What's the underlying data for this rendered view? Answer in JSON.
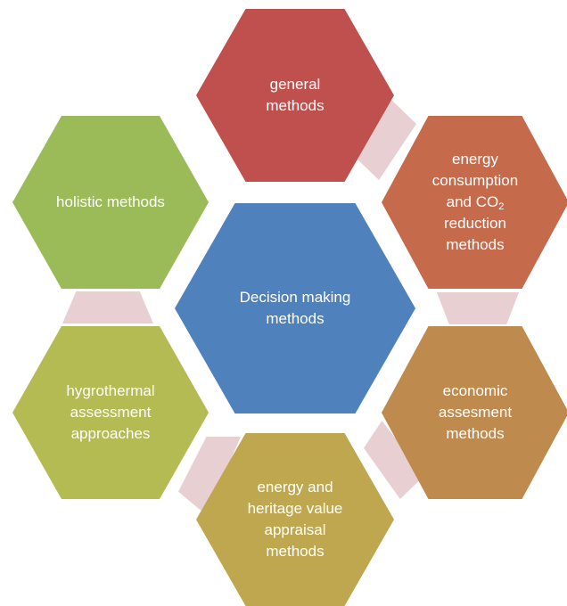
{
  "center": {
    "line1": "Decision making",
    "line2": "methods",
    "color": "#4f81bd"
  },
  "nodes": {
    "general": {
      "line1": "general",
      "line2": "methods",
      "color": "#c0504d"
    },
    "energy_co2": {
      "line1": "energy",
      "line2": "consumption",
      "line3a": "and CO",
      "line3_sub": "2",
      "line4": "reduction",
      "line5": "methods",
      "color": "#c56a4b"
    },
    "economic": {
      "line1": "economic",
      "line2": "assesment",
      "line3": "methods",
      "color": "#be8a4e"
    },
    "heritage": {
      "line1": "energy and",
      "line2": "heritage value",
      "line3": "appraisal",
      "line4": "methods",
      "color": "#bfa74f"
    },
    "hygrothermal": {
      "line1": "hygrothermal",
      "line2": "assessment",
      "line3": "approaches",
      "color": "#b4bb53"
    },
    "holistic": {
      "line1": "holistic methods",
      "color": "#9bbb59"
    }
  },
  "connector_color": "#e8cfd2"
}
